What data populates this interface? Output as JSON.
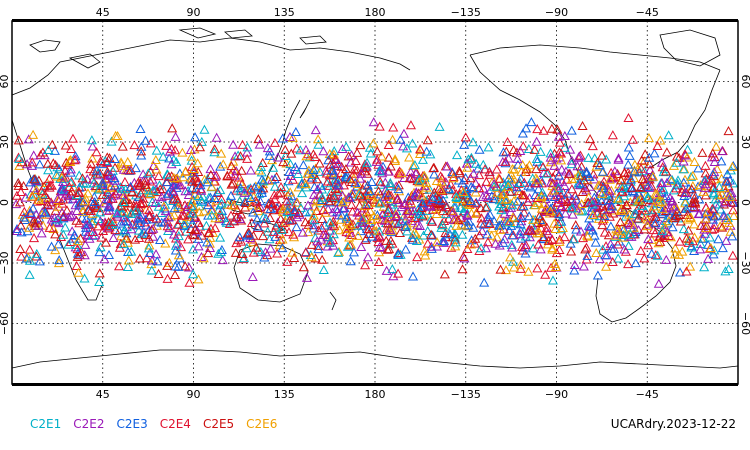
{
  "map": {
    "lon_ticks_top": [
      "45",
      "90",
      "135",
      "180",
      "−135",
      "−90",
      "−45"
    ],
    "lon_ticks_bottom": [
      "45",
      "90",
      "135",
      "180",
      "−135",
      "−90",
      "−45"
    ],
    "lat_ticks_left": [
      "60",
      "30",
      "0",
      "−30",
      "−60"
    ],
    "lat_ticks_right": [
      "60",
      "30",
      "0",
      "−30",
      "−60"
    ],
    "frame_color": "#000000",
    "grid_style": "dotted",
    "coastline_color": "#000000",
    "marker_shape": "triangle-outline",
    "lat_range": [
      -90,
      90
    ],
    "lon_range": [
      0,
      360
    ],
    "observation_lat_band": [
      -45,
      45
    ]
  },
  "legend": [
    {
      "label": "C2E1",
      "color": "#00b0c8"
    },
    {
      "label": "C2E2",
      "color": "#9a18b8"
    },
    {
      "label": "C2E3",
      "color": "#1060e0"
    },
    {
      "label": "C2E4",
      "color": "#e0102e"
    },
    {
      "label": "C2E5",
      "color": "#cc1010"
    },
    {
      "label": "C2E6",
      "color": "#f0a000"
    }
  ],
  "stamp": "UCARdry.2023-12-22"
}
